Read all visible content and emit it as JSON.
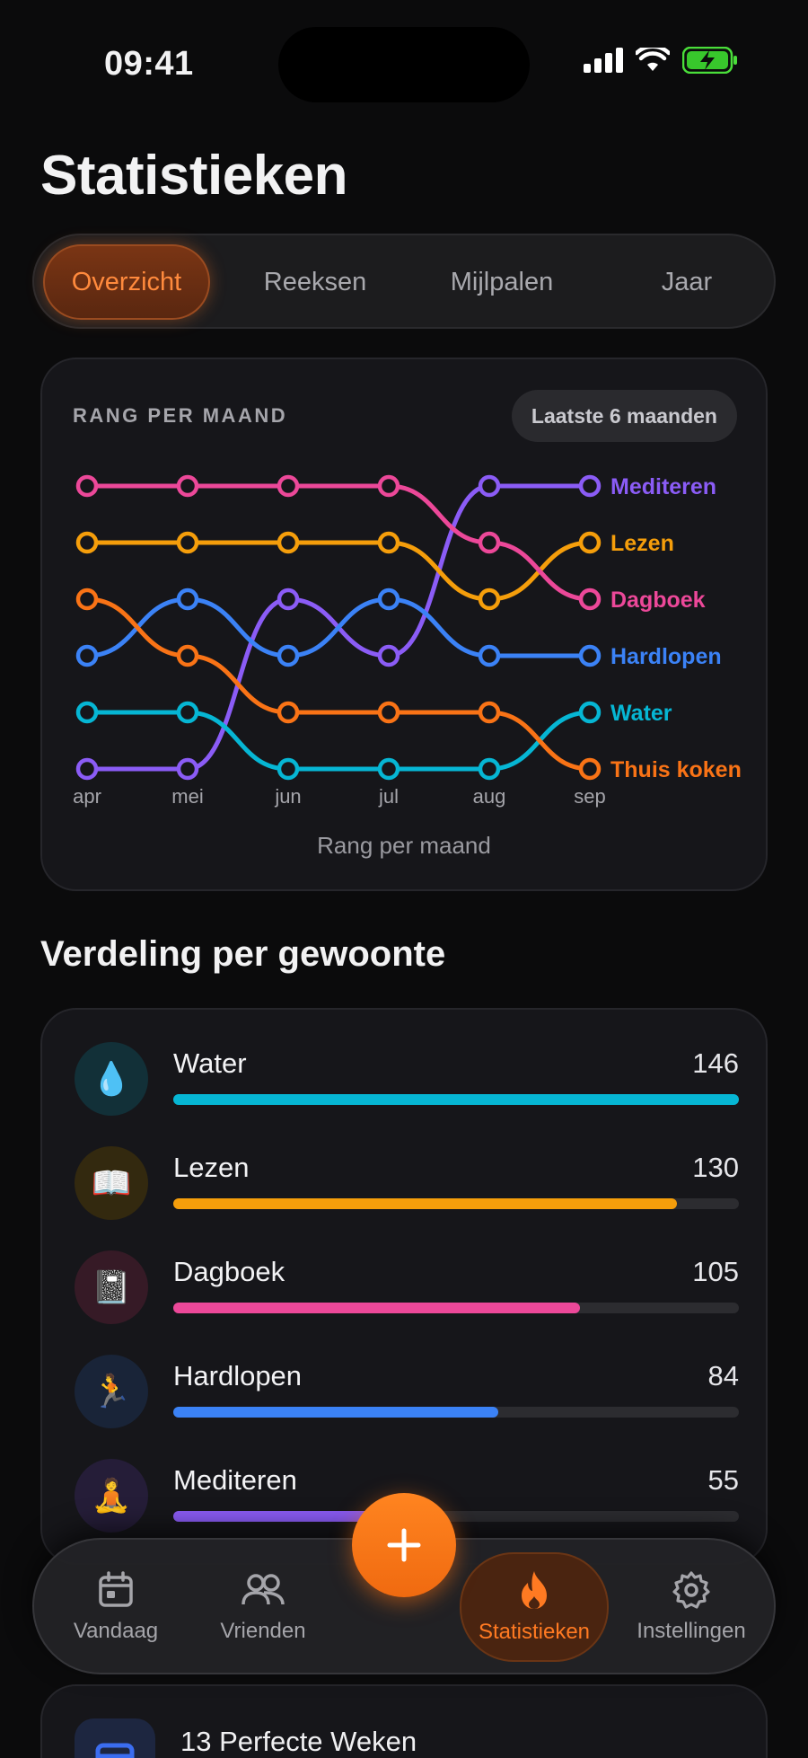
{
  "status_bar": {
    "time": "09:41"
  },
  "page_title": "Statistieken",
  "segments": [
    {
      "label": "Overzicht",
      "active": true
    },
    {
      "label": "Reeksen",
      "active": false
    },
    {
      "label": "Mijlpalen",
      "active": false
    },
    {
      "label": "Jaar",
      "active": false
    }
  ],
  "rank_chart": {
    "label": "RANG PER MAAND",
    "period": "Laatste 6 maanden",
    "caption": "Rang per maand"
  },
  "chart_data": {
    "type": "line",
    "title": "RANG PER MAAND",
    "xlabel": "Rang per maand",
    "ylabel": "",
    "x": [
      "apr",
      "mei",
      "jun",
      "jul",
      "aug",
      "sep"
    ],
    "ylim": [
      1,
      6
    ],
    "y_inverted": true,
    "grid": false,
    "legend": "right-end-labels",
    "series": [
      {
        "name": "Mediteren",
        "color": "#8b5cf6",
        "values": [
          6,
          6,
          3,
          4,
          1,
          1
        ]
      },
      {
        "name": "Lezen",
        "color": "#f59e0b",
        "values": [
          2,
          2,
          2,
          2,
          3,
          2
        ]
      },
      {
        "name": "Dagboek",
        "color": "#ec4899",
        "values": [
          1,
          1,
          1,
          1,
          2,
          3
        ]
      },
      {
        "name": "Hardlopen",
        "color": "#3b82f6",
        "values": [
          4,
          3,
          4,
          3,
          4,
          4
        ]
      },
      {
        "name": "Water",
        "color": "#06b6d4",
        "values": [
          5,
          5,
          6,
          6,
          6,
          5
        ]
      },
      {
        "name": "Thuis koken",
        "color": "#f97316",
        "values": [
          3,
          4,
          5,
          5,
          5,
          6
        ]
      }
    ]
  },
  "distribution": {
    "title": "Verdeling per gewoonte",
    "max": 146,
    "items": [
      {
        "name": "Water",
        "count": 146,
        "color": "#06b6d4",
        "icon": "💧",
        "icon_name": "water-drop-icon",
        "bg": "#123038"
      },
      {
        "name": "Lezen",
        "count": 130,
        "color": "#f59e0b",
        "icon": "📖",
        "icon_name": "book-icon",
        "bg": "#33290f"
      },
      {
        "name": "Dagboek",
        "count": 105,
        "color": "#ec4899",
        "icon": "📓",
        "icon_name": "notebook-icon",
        "bg": "#361a26"
      },
      {
        "name": "Hardlopen",
        "count": 84,
        "color": "#3b82f6",
        "icon": "🏃",
        "icon_name": "runner-icon",
        "bg": "#192438"
      },
      {
        "name": "Mediteren",
        "count": 55,
        "color": "#8b5cf6",
        "icon": "🧘",
        "icon_name": "meditation-icon",
        "bg": "#251d38"
      }
    ]
  },
  "perfect_weeks": {
    "title": "13 Perfecte Weken"
  },
  "tabs": [
    {
      "label": "Vandaag",
      "icon": "calendar-icon",
      "active": false
    },
    {
      "label": "Vrienden",
      "icon": "friends-icon",
      "active": false
    },
    {
      "label": "Statistieken",
      "icon": "flame-icon",
      "active": true
    },
    {
      "label": "Instellingen",
      "icon": "gear-icon",
      "active": false
    }
  ],
  "colors": {
    "accent": "#ff7a22",
    "background": "#0b0b0c",
    "card": "#16161a"
  }
}
